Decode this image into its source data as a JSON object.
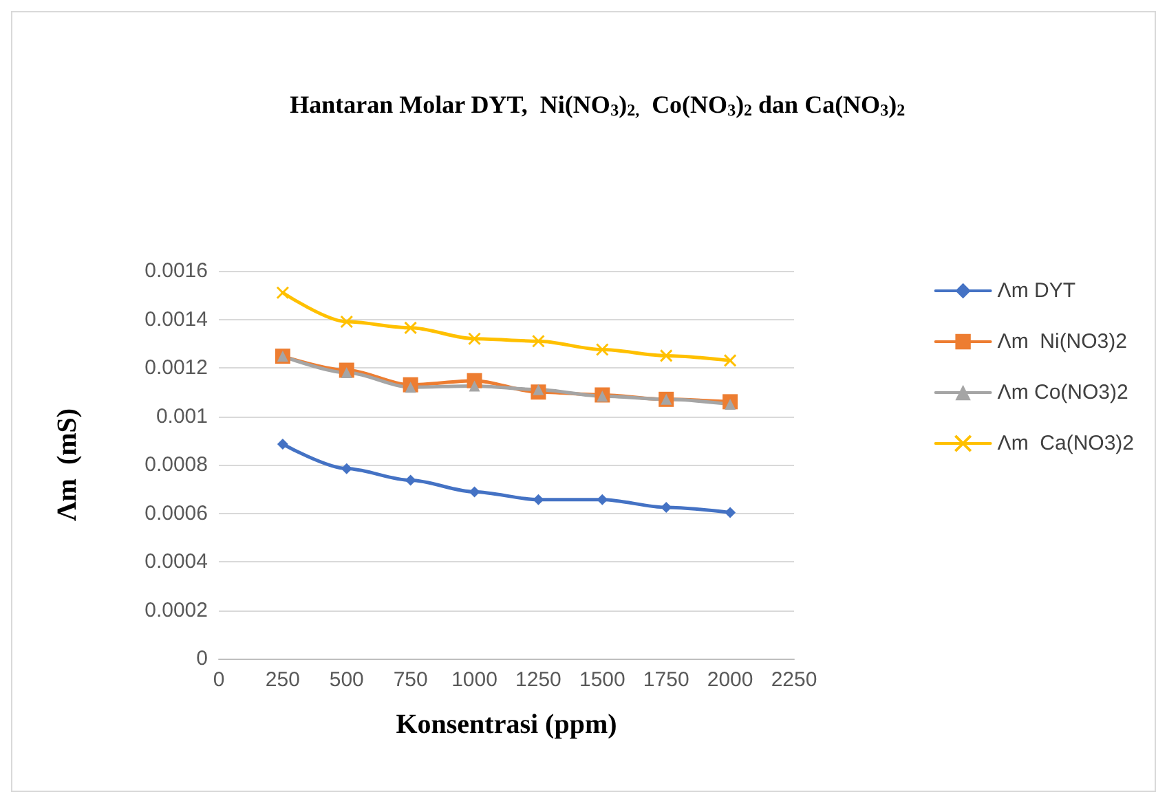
{
  "chart_data": {
    "type": "line",
    "title": "Hantaran Molar DYT,  Ni(NO$_{3}$)$_{2,}$  Co(NO$_{3}$)$_{2}$ dan Ca(NO$_{3}$)$_{2}$",
    "xlabel": "Konsentrasi (ppm)",
    "ylabel": "Λm  (mS)",
    "x": [
      250,
      500,
      750,
      1000,
      1250,
      1500,
      1750,
      2000
    ],
    "series": [
      {
        "name": "Λm DYT",
        "color": "#4472c4",
        "marker": "diamond",
        "values": [
          0.000885,
          0.000784,
          0.000736,
          0.000688,
          0.000656,
          0.000656,
          0.000624,
          0.000603
        ]
      },
      {
        "name": "Λm  Ni(NO3)2",
        "color": "#ed7d31",
        "marker": "square",
        "values": [
          0.001248,
          0.00119,
          0.00113,
          0.001147,
          0.0011,
          0.001088,
          0.00107,
          0.00106
        ]
      },
      {
        "name": "Λm Co(NO3)2",
        "color": "#a5a5a5",
        "marker": "triangle",
        "values": [
          0.001248,
          0.00118,
          0.00112,
          0.001125,
          0.00111,
          0.001083,
          0.00107,
          0.00105
        ]
      },
      {
        "name": "Λm  Ca(NO3)2",
        "color": "#ffc000",
        "marker": "cross",
        "values": [
          0.00151,
          0.00139,
          0.001365,
          0.00132,
          0.00131,
          0.001275,
          0.00125,
          0.00123
        ]
      }
    ],
    "xlim": [
      0,
      2250
    ],
    "xticks": [
      0,
      250,
      500,
      750,
      1000,
      1250,
      1500,
      1750,
      2000,
      2250
    ],
    "ylim": [
      0,
      0.0016
    ],
    "yticks": [
      0,
      0.0002,
      0.0004,
      0.0006,
      0.0008,
      0.001,
      0.0012,
      0.0014,
      0.0016
    ],
    "grid": "y",
    "legend": "right",
    "line_style": "solid"
  }
}
